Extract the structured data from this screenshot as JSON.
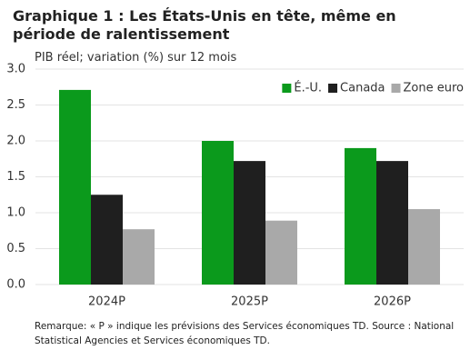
{
  "chart_data": {
    "type": "bar",
    "title": "Graphique 1 : Les États-Unis en tête, même en période de ralentissement",
    "subtitle": "PIB réel; variation (%) sur 12 mois",
    "categories": [
      "2024P",
      "2025P",
      "2026P"
    ],
    "series": [
      {
        "name": "É.-U.",
        "color": "#0b9a1c",
        "values": [
          2.71,
          2.0,
          1.9
        ]
      },
      {
        "name": "Canada",
        "color": "#1f1f1f",
        "values": [
          1.25,
          1.72,
          1.72
        ]
      },
      {
        "name": "Zone euro",
        "color": "#a9a9a9",
        "values": [
          0.77,
          0.89,
          1.05
        ]
      }
    ],
    "ylim": [
      0,
      3
    ],
    "yticks": [
      {
        "value": 0,
        "label": "0.0"
      },
      {
        "value": 0.5,
        "label": "0.5"
      },
      {
        "value": 1,
        "label": "1.0"
      },
      {
        "value": 1.5,
        "label": "1.5"
      },
      {
        "value": 2,
        "label": "2.0"
      },
      {
        "value": 2.5,
        "label": "2.5"
      },
      {
        "value": 3,
        "label": "3.0"
      }
    ],
    "grid": true,
    "legend": "top-right",
    "note": "Remarque: « P » indique les prévisions des Services économiques TD. Source : National Statistical Agencies et Services économiques TD."
  }
}
